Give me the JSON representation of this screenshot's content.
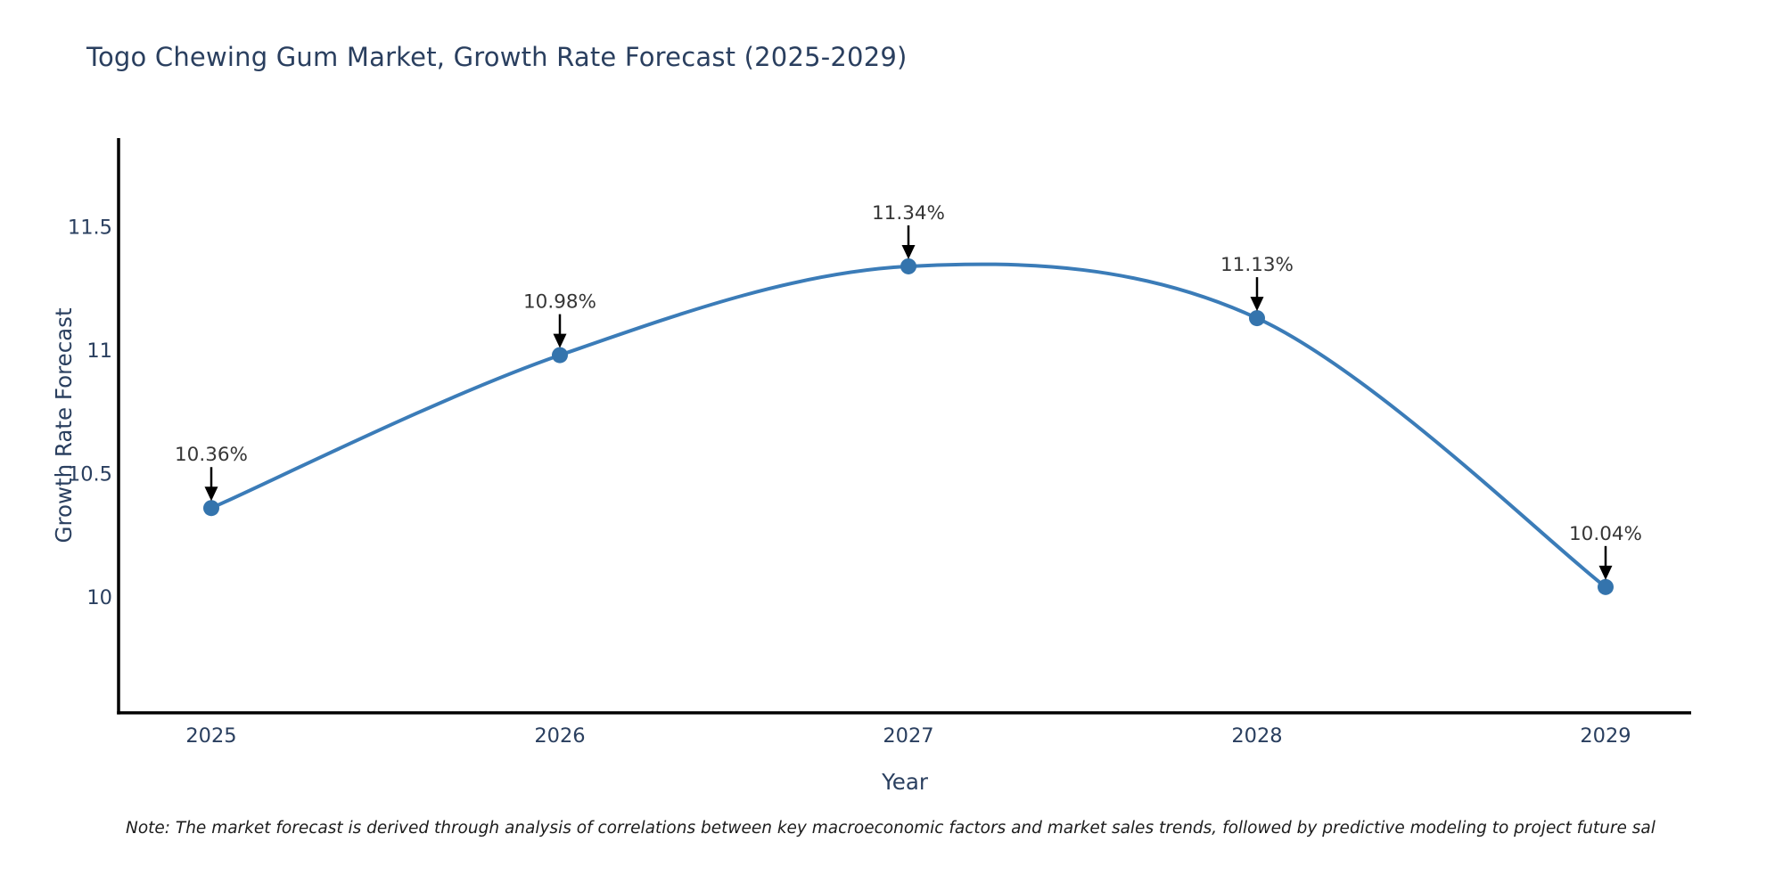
{
  "note": {
    "text": "Note: The market forecast is derived through analysis of correlations between key macroeconomic factors and market sales trends, followed by predictive modeling to project future sal"
  },
  "chart_data": {
    "type": "line",
    "title": "Togo Chewing Gum Market, Growth Rate Forecast (2025-2029)",
    "xlabel": "Year",
    "ylabel": "Growth Rate Forecast",
    "categories": [
      "2025",
      "2026",
      "2027",
      "2028",
      "2029"
    ],
    "values": [
      10.36,
      10.98,
      11.34,
      11.13,
      10.04
    ],
    "point_labels": [
      "10.36%",
      "10.98%",
      "11.34%",
      "11.13%",
      "10.04%"
    ],
    "series_name": "Growth Rate Forecast",
    "line_shape": "spline",
    "markers": "circle",
    "annotations_arrow": "down-arrow-to-point",
    "grid": false,
    "legend": "none",
    "ylim": [
      9.53,
      11.86
    ],
    "yticks": [
      10,
      10.5,
      11,
      11.5
    ],
    "colors": {
      "line": "#3b7cb8",
      "marker": "#3474ad",
      "axis": "#000000",
      "tick_text": "#2a3f5f",
      "axis_title_text": "#2a3f5f",
      "title_text": "#2a3f5f",
      "annotation_text": "#363636",
      "arrow": "#000000",
      "background": "#ffffff"
    }
  }
}
